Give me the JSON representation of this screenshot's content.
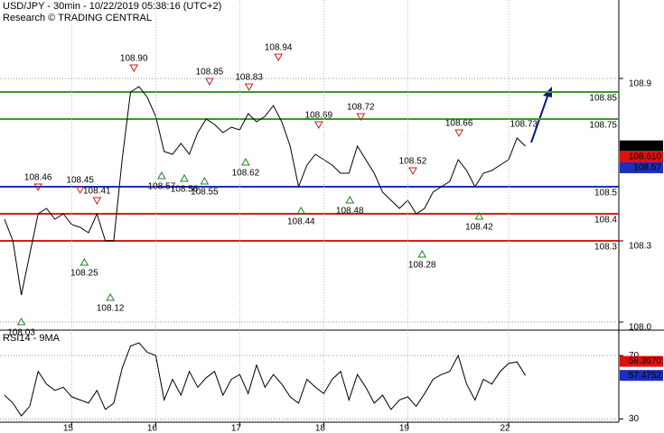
{
  "chart_data": [
    {
      "type": "line",
      "title": "USD/JPY - 30min - 10/22/2019 05:38:16 (UTC+2)",
      "subtitle": "Research © TRADING CENTRAL",
      "color": "#000000",
      "values": [
        108.38,
        108.3,
        108.1,
        108.25,
        108.4,
        108.42,
        108.38,
        108.4,
        108.36,
        108.35,
        108.33,
        108.4,
        108.3,
        108.3,
        108.6,
        108.85,
        108.87,
        108.83,
        108.76,
        108.63,
        108.62,
        108.66,
        108.62,
        108.7,
        108.75,
        108.73,
        108.7,
        108.72,
        108.71,
        108.77,
        108.74,
        108.76,
        108.8,
        108.74,
        108.65,
        108.5,
        108.58,
        108.62,
        108.6,
        108.58,
        108.55,
        108.55,
        108.65,
        108.6,
        108.55,
        108.48,
        108.45,
        108.42,
        108.45,
        108.4,
        108.42,
        108.48,
        108.5,
        108.52,
        108.6,
        108.56,
        108.5,
        108.55,
        108.56,
        108.58,
        108.6,
        108.68,
        108.65
      ],
      "ylim": [
        107.97,
        109.19
      ],
      "yticks": [
        108.9,
        108.3,
        {
          "value": 108,
          "label": "108.0"
        }
      ],
      "grid": true,
      "levels": [
        {
          "value": 108.85,
          "color": "#3a9a2a"
        },
        {
          "value": 108.75,
          "color": "#3a9a2a"
        },
        {
          "value": 108.5,
          "color": "#1a2fc0"
        },
        {
          "value": 108.4,
          "color": "#d42020"
        },
        {
          "value": 108.3,
          "color": "#d42020"
        }
      ],
      "annotations": [
        {
          "x": 2,
          "value": 108.03,
          "label": "108.03",
          "kind": "low"
        },
        {
          "x": 4,
          "value": 108.46,
          "label": "108.46",
          "kind": "high"
        },
        {
          "x": 9,
          "value": 108.45,
          "label": "108.45",
          "kind": "high"
        },
        {
          "x": 9.5,
          "value": 108.25,
          "label": "108.25",
          "kind": "low"
        },
        {
          "x": 11,
          "value": 108.41,
          "label": "108.41",
          "kind": "high"
        },
        {
          "x": 12.6,
          "value": 108.12,
          "label": "108.12",
          "kind": "low"
        },
        {
          "x": 15.4,
          "value": 108.9,
          "label": "108.90",
          "kind": "high"
        },
        {
          "x": 18.7,
          "value": 108.57,
          "label": "108.57",
          "kind": "low"
        },
        {
          "x": 21.4,
          "value": 108.56,
          "label": "108.56",
          "kind": "low"
        },
        {
          "x": 23.8,
          "value": 108.55,
          "label": "108.55",
          "kind": "low"
        },
        {
          "x": 24.4,
          "value": 108.85,
          "label": "108.85",
          "kind": "high"
        },
        {
          "x": 28.7,
          "value": 108.62,
          "label": "108.62",
          "kind": "low"
        },
        {
          "x": 29.1,
          "value": 108.83,
          "label": "108.83",
          "kind": "high"
        },
        {
          "x": 32.6,
          "value": 108.94,
          "label": "108.94",
          "kind": "high"
        },
        {
          "x": 35.3,
          "value": 108.44,
          "label": "108.44",
          "kind": "low"
        },
        {
          "x": 37.4,
          "value": 108.69,
          "label": "108.69",
          "kind": "high"
        },
        {
          "x": 41.1,
          "value": 108.48,
          "label": "108.48",
          "kind": "low"
        },
        {
          "x": 42.4,
          "value": 108.72,
          "label": "108.72",
          "kind": "high"
        },
        {
          "x": 48.6,
          "value": 108.52,
          "label": "108.52",
          "kind": "high"
        },
        {
          "x": 49.7,
          "value": 108.28,
          "label": "108.28",
          "kind": "low"
        },
        {
          "x": 54.1,
          "value": 108.66,
          "label": "108.66",
          "kind": "high"
        },
        {
          "x": 56.5,
          "value": 108.42,
          "label": "108.42",
          "kind": "low"
        },
        {
          "x": 61.8,
          "value": 108.73,
          "label": "108.73",
          "kind": "target"
        }
      ],
      "price_tags": [
        {
          "value": 108.651,
          "color": "#000000"
        },
        {
          "value": 108.61,
          "label": "108.610",
          "color": "#e01010"
        },
        {
          "value": 108.57,
          "color": "#1a2fc0"
        }
      ]
    },
    {
      "type": "line",
      "title": "RSI14 - 9MA",
      "color": "#000000",
      "categories": [
        null,
        null,
        null,
        null,
        null,
        null,
        null,
        null,
        "15",
        null,
        null,
        null,
        null,
        null,
        null,
        null,
        null,
        null,
        "16",
        null,
        null,
        null,
        null,
        null,
        null,
        null,
        null,
        null,
        "17",
        null,
        null,
        null,
        null,
        null,
        null,
        null,
        null,
        null,
        "18",
        null,
        null,
        null,
        null,
        null,
        null,
        null,
        null,
        null,
        "19",
        null,
        null,
        null,
        null,
        null,
        null,
        null,
        null,
        null,
        null,
        null,
        "22",
        null,
        null
      ],
      "values": [
        45,
        40,
        32,
        38,
        60,
        52,
        48,
        50,
        44,
        42,
        40,
        48,
        36,
        40,
        62,
        76,
        78,
        72,
        70,
        42,
        55,
        45,
        60,
        50,
        56,
        60,
        45,
        55,
        58,
        46,
        64,
        50,
        58,
        52,
        44,
        40,
        55,
        50,
        46,
        55,
        60,
        42,
        58,
        50,
        40,
        45,
        36,
        42,
        44,
        38,
        46,
        55,
        58,
        60,
        70,
        52,
        42,
        55,
        52,
        60,
        65,
        66,
        57.4752
      ],
      "ylim": [
        28,
        86
      ],
      "yticks": [
        70,
        30
      ],
      "grid": true,
      "price_tags": [
        {
          "value": 58.367,
          "label": "58.3670",
          "color": "#e01010"
        },
        {
          "value": 57.4752,
          "color": "#1a2fc0"
        }
      ]
    }
  ]
}
